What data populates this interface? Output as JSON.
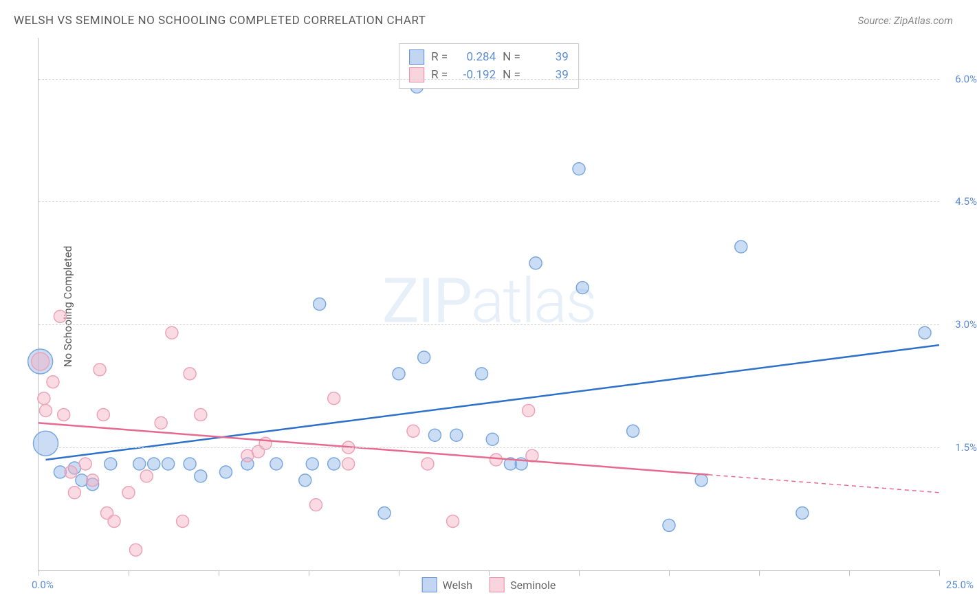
{
  "title": "WELSH VS SEMINOLE NO SCHOOLING COMPLETED CORRELATION CHART",
  "source": "Source: ZipAtlas.com",
  "watermark_a": "ZIP",
  "watermark_b": "atlas",
  "y_axis_label": "No Schooling Completed",
  "chart": {
    "type": "scatter",
    "x_range": [
      0,
      25
    ],
    "y_range": [
      0,
      6.5
    ],
    "y_gridlines": [
      1.5,
      3.0,
      4.5,
      6.0
    ],
    "y_tick_labels": [
      "1.5%",
      "3.0%",
      "4.5%",
      "6.0%"
    ],
    "x_ticks": [
      0,
      2.5,
      5,
      7.5,
      10,
      12.5,
      15,
      17.5,
      20,
      22.5,
      25
    ],
    "x_origin_label": "0.0%",
    "x_max_label": "25.0%",
    "series": [
      {
        "name": "Welsh",
        "color_fill": "rgba(140, 180, 230, 0.45)",
        "color_stroke": "#7aa8de",
        "line_color": "#2e71c9",
        "r_value": "0.284",
        "n_value": "39",
        "trend": {
          "x1": 0.2,
          "y1": 1.35,
          "x2": 25,
          "y2": 2.75,
          "solid_until_x": 25
        },
        "points": [
          {
            "x": 0.05,
            "y": 2.55,
            "r": 18
          },
          {
            "x": 0.2,
            "y": 1.55,
            "r": 18
          },
          {
            "x": 0.6,
            "y": 1.2,
            "r": 9
          },
          {
            "x": 1.0,
            "y": 1.25,
            "r": 9
          },
          {
            "x": 1.2,
            "y": 1.1,
            "r": 9
          },
          {
            "x": 1.5,
            "y": 1.05,
            "r": 9
          },
          {
            "x": 2.0,
            "y": 1.3,
            "r": 9
          },
          {
            "x": 2.8,
            "y": 1.3,
            "r": 9
          },
          {
            "x": 3.2,
            "y": 1.3,
            "r": 9
          },
          {
            "x": 3.6,
            "y": 1.3,
            "r": 9
          },
          {
            "x": 4.2,
            "y": 1.3,
            "r": 9
          },
          {
            "x": 4.5,
            "y": 1.15,
            "r": 9
          },
          {
            "x": 5.2,
            "y": 1.2,
            "r": 9
          },
          {
            "x": 5.8,
            "y": 1.3,
            "r": 9
          },
          {
            "x": 6.6,
            "y": 1.3,
            "r": 9
          },
          {
            "x": 7.4,
            "y": 1.1,
            "r": 9
          },
          {
            "x": 7.6,
            "y": 1.3,
            "r": 9
          },
          {
            "x": 7.8,
            "y": 3.25,
            "r": 9
          },
          {
            "x": 8.2,
            "y": 1.3,
            "r": 9
          },
          {
            "x": 9.6,
            "y": 0.7,
            "r": 9
          },
          {
            "x": 10.0,
            "y": 2.4,
            "r": 9
          },
          {
            "x": 10.5,
            "y": 5.9,
            "r": 9
          },
          {
            "x": 10.7,
            "y": 2.6,
            "r": 9
          },
          {
            "x": 11.0,
            "y": 1.65,
            "r": 9
          },
          {
            "x": 11.6,
            "y": 1.65,
            "r": 9
          },
          {
            "x": 12.3,
            "y": 2.4,
            "r": 9
          },
          {
            "x": 12.6,
            "y": 1.6,
            "r": 9
          },
          {
            "x": 13.1,
            "y": 1.3,
            "r": 9
          },
          {
            "x": 13.4,
            "y": 1.3,
            "r": 9
          },
          {
            "x": 13.8,
            "y": 3.75,
            "r": 9
          },
          {
            "x": 15.0,
            "y": 4.9,
            "r": 9
          },
          {
            "x": 15.1,
            "y": 3.45,
            "r": 9
          },
          {
            "x": 16.5,
            "y": 1.7,
            "r": 9
          },
          {
            "x": 17.5,
            "y": 0.55,
            "r": 9
          },
          {
            "x": 18.4,
            "y": 1.1,
            "r": 9
          },
          {
            "x": 19.5,
            "y": 3.95,
            "r": 9
          },
          {
            "x": 21.2,
            "y": 0.7,
            "r": 9
          },
          {
            "x": 24.6,
            "y": 2.9,
            "r": 9
          }
        ]
      },
      {
        "name": "Seminole",
        "color_fill": "rgba(245, 175, 195, 0.45)",
        "color_stroke": "#eca2b8",
        "line_color": "#e56a8e",
        "r_value": "-0.192",
        "n_value": "39",
        "trend": {
          "x1": 0,
          "y1": 1.8,
          "x2": 25,
          "y2": 0.95,
          "solid_until_x": 18.6
        },
        "points": [
          {
            "x": 0.05,
            "y": 2.55,
            "r": 13
          },
          {
            "x": 0.15,
            "y": 2.1,
            "r": 9
          },
          {
            "x": 0.2,
            "y": 1.95,
            "r": 9
          },
          {
            "x": 0.4,
            "y": 2.3,
            "r": 9
          },
          {
            "x": 0.6,
            "y": 3.1,
            "r": 9
          },
          {
            "x": 0.7,
            "y": 1.9,
            "r": 9
          },
          {
            "x": 0.9,
            "y": 1.2,
            "r": 9
          },
          {
            "x": 1.0,
            "y": 0.95,
            "r": 9
          },
          {
            "x": 1.3,
            "y": 1.3,
            "r": 9
          },
          {
            "x": 1.5,
            "y": 1.1,
            "r": 9
          },
          {
            "x": 1.7,
            "y": 2.45,
            "r": 9
          },
          {
            "x": 1.8,
            "y": 1.9,
            "r": 9
          },
          {
            "x": 1.9,
            "y": 0.7,
            "r": 9
          },
          {
            "x": 2.1,
            "y": 0.6,
            "r": 9
          },
          {
            "x": 2.5,
            "y": 0.95,
            "r": 9
          },
          {
            "x": 2.7,
            "y": 0.25,
            "r": 9
          },
          {
            "x": 3.0,
            "y": 1.15,
            "r": 9
          },
          {
            "x": 3.4,
            "y": 1.8,
            "r": 9
          },
          {
            "x": 3.7,
            "y": 2.9,
            "r": 9
          },
          {
            "x": 4.0,
            "y": 0.6,
            "r": 9
          },
          {
            "x": 4.2,
            "y": 2.4,
            "r": 9
          },
          {
            "x": 4.5,
            "y": 1.9,
            "r": 9
          },
          {
            "x": 5.8,
            "y": 1.4,
            "r": 9
          },
          {
            "x": 6.1,
            "y": 1.45,
            "r": 9
          },
          {
            "x": 6.3,
            "y": 1.55,
            "r": 9
          },
          {
            "x": 7.7,
            "y": 0.8,
            "r": 9
          },
          {
            "x": 8.2,
            "y": 2.1,
            "r": 9
          },
          {
            "x": 8.6,
            "y": 1.5,
            "r": 9
          },
          {
            "x": 8.6,
            "y": 1.3,
            "r": 9
          },
          {
            "x": 10.4,
            "y": 1.7,
            "r": 9
          },
          {
            "x": 10.8,
            "y": 1.3,
            "r": 9
          },
          {
            "x": 11.5,
            "y": 0.6,
            "r": 9
          },
          {
            "x": 12.7,
            "y": 1.35,
            "r": 9
          },
          {
            "x": 13.6,
            "y": 1.95,
            "r": 9
          },
          {
            "x": 13.7,
            "y": 1.4,
            "r": 9
          }
        ]
      }
    ]
  },
  "legend": {
    "welsh": "Welsh",
    "seminole": "Seminole"
  },
  "stats_labels": {
    "r": "R  =",
    "n": "N  ="
  }
}
